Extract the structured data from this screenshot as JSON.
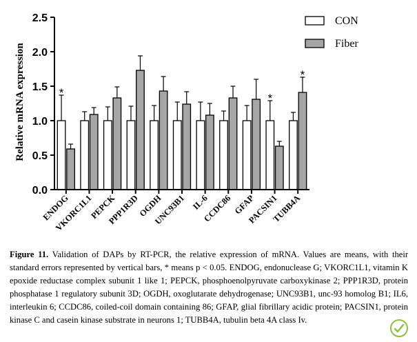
{
  "chart_data": {
    "type": "bar",
    "title": "",
    "xlabel": "",
    "ylabel": "Relative mRNA expression",
    "ylim": [
      0,
      2.5
    ],
    "yticks": [
      "0.0",
      "0.5",
      "1.0",
      "1.5",
      "2.0",
      "2.5"
    ],
    "grid": false,
    "legend_position": "top-right",
    "categories": [
      "ENDOG",
      "VKORC1L1",
      "PEPCK",
      "PPP1R3D",
      "OGDH",
      "UNC93B1",
      "IL-6",
      "CCDC86",
      "GFAP",
      "PACSIN1",
      "TUBB4A"
    ],
    "series": [
      {
        "name": "CON",
        "color": "#ffffff",
        "values": [
          1.0,
          1.0,
          1.0,
          1.0,
          1.0,
          1.0,
          1.0,
          1.0,
          1.0,
          1.0,
          1.0
        ],
        "errors": [
          0.37,
          0.13,
          0.2,
          0.21,
          0.22,
          0.27,
          0.27,
          0.14,
          0.22,
          0.29,
          0.12
        ]
      },
      {
        "name": "Fiber",
        "color": "#a6a6a6",
        "values": [
          0.59,
          1.09,
          1.33,
          1.73,
          1.43,
          1.24,
          1.08,
          1.33,
          1.31,
          0.63,
          1.41
        ],
        "errors": [
          0.07,
          0.1,
          0.16,
          0.21,
          0.21,
          0.18,
          0.17,
          0.17,
          0.29,
          0.07,
          0.22
        ]
      }
    ],
    "annotations": [
      {
        "category": "ENDOG",
        "series": "CON",
        "text": "*"
      },
      {
        "category": "PACSIN1",
        "series": "CON",
        "text": "*"
      },
      {
        "category": "TUBB4A",
        "series": "Fiber",
        "text": "*"
      }
    ]
  },
  "caption": {
    "label": "Figure 11.",
    "text": "Validation of DAPs by RT-PCR, the relative expression of mRNA. Values are means, with their standard errors represented by vertical bars, * means p < 0.05. ENDOG, endonuclease G; VKORC1L1, vitamin K epoxide reductase complex subunit 1 like 1; PEPCK, phosphoenolpyruvate carboxykinase 2; PPP1R3D, protein phosphatase 1 regulatory subunit 3D; OGDH, oxoglutarate dehydrogenase; UNC93B1, unc-93 homolog B1; IL6, interleukin 6; CCDC86, coiled-coil domain containing 86; GFAP, glial fibrillary acidic protein; PACSIN1, protein kinase C and casein kinase substrate in neurons 1; TUBB4A, tubulin beta 4A class Iv."
  },
  "logo": {
    "icon": "check-leaf-icon",
    "color": "#8fbf3f"
  }
}
